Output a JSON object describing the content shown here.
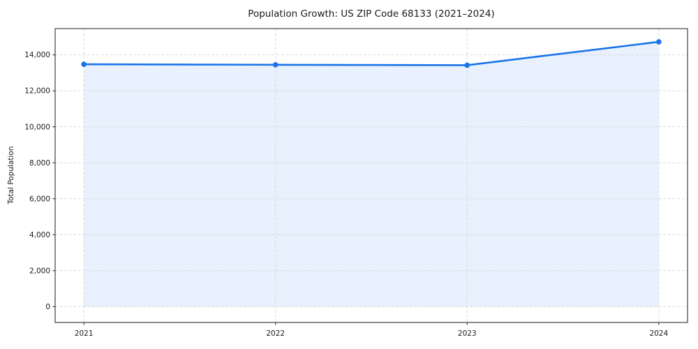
{
  "chart_data": {
    "type": "area",
    "title": "Population Growth: US ZIP Code 68133 (2021–2024)",
    "xlabel": "",
    "ylabel": "Total Population",
    "x": [
      2021,
      2022,
      2023,
      2024
    ],
    "xtick_labels": [
      "2021",
      "2022",
      "2023",
      "2024"
    ],
    "series": [
      {
        "name": "Total Population",
        "values": [
          13480,
          13450,
          13425,
          14725
        ]
      }
    ],
    "yticks": [
      0,
      2000,
      4000,
      6000,
      8000,
      10000,
      12000,
      14000
    ],
    "ytick_labels": [
      "0",
      "2,000",
      "4,000",
      "6,000",
      "8,000",
      "10,000",
      "12,000",
      "14,000"
    ],
    "xlim": [
      2020.85,
      2024.15
    ],
    "ylim": [
      -880,
      15460
    ],
    "grid": true,
    "legend": "none",
    "colors": {
      "line": "#1a73e8",
      "marker": "#1a73e8",
      "fill": "rgba(26,115,232,0.10)",
      "grid": "#d9d9d9",
      "spine": "#1a1a1a",
      "text": "#1a1a1a",
      "background": "#ffffff"
    }
  }
}
